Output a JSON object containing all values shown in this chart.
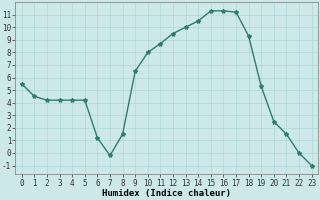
{
  "x": [
    0,
    1,
    2,
    3,
    4,
    5,
    6,
    7,
    8,
    9,
    10,
    11,
    12,
    13,
    14,
    15,
    16,
    17,
    18,
    19,
    20,
    21,
    22,
    23
  ],
  "y": [
    5.5,
    4.5,
    4.2,
    4.2,
    4.2,
    4.2,
    1.2,
    -0.2,
    1.5,
    6.5,
    8.0,
    8.7,
    9.5,
    10.0,
    10.5,
    11.3,
    11.3,
    11.2,
    9.3,
    5.3,
    2.5,
    1.5,
    0.0,
    -1.0
  ],
  "line_color": "#2e7d6e",
  "marker": "*",
  "marker_size": 3,
  "bg_color": "#cce8e8",
  "grid_color": "#aad4d4",
  "xlabel": "Humidex (Indice chaleur)",
  "ylim": [
    -1.7,
    12.0
  ],
  "xlim": [
    -0.5,
    23.5
  ],
  "yticks": [
    -1,
    0,
    1,
    2,
    3,
    4,
    5,
    6,
    7,
    8,
    9,
    10,
    11
  ],
  "xticks": [
    0,
    1,
    2,
    3,
    4,
    5,
    6,
    7,
    8,
    9,
    10,
    11,
    12,
    13,
    14,
    15,
    16,
    17,
    18,
    19,
    20,
    21,
    22,
    23
  ],
  "xlabel_fontsize": 6.5,
  "tick_fontsize": 5.5,
  "line_width": 1.0
}
